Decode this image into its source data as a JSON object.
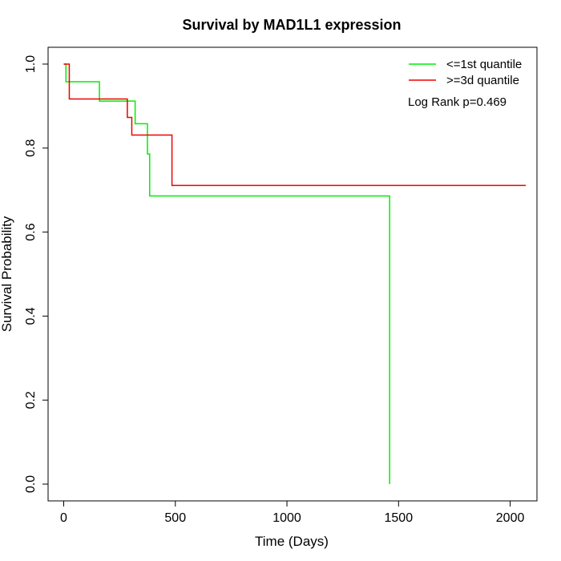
{
  "chart_data": {
    "type": "line",
    "title": "Survival by MAD1L1 expression",
    "xlabel": "Time (Days)",
    "ylabel": "Survival Probability",
    "xlim": [
      -70,
      2120
    ],
    "ylim": [
      -0.04,
      1.04
    ],
    "x_ticks": [
      0,
      500,
      1000,
      1500,
      2000
    ],
    "y_ticks": [
      0.0,
      0.2,
      0.4,
      0.6,
      0.8,
      1.0
    ],
    "x_tick_labels": [
      "0",
      "500",
      "1000",
      "1500",
      "2000"
    ],
    "y_tick_labels": [
      "0.0",
      "0.2",
      "0.4",
      "0.6",
      "0.8",
      "1.0"
    ],
    "grid": false,
    "legend_position": "top-right",
    "annotation": "Log Rank p=0.469",
    "series": [
      {
        "name": "<=1st quantile",
        "color": "#00ee00",
        "steps": [
          [
            0,
            1.0
          ],
          [
            10,
            0.958
          ],
          [
            160,
            0.912
          ],
          [
            320,
            0.858
          ],
          [
            375,
            0.786
          ],
          [
            385,
            0.686
          ],
          [
            1460,
            0.0
          ]
        ]
      },
      {
        "name": ">=3d quantile",
        "color": "#ee0000",
        "steps": [
          [
            0,
            1.0
          ],
          [
            25,
            0.917
          ],
          [
            285,
            0.873
          ],
          [
            305,
            0.831
          ],
          [
            485,
            0.711
          ]
        ],
        "end_x": 2070
      }
    ]
  }
}
